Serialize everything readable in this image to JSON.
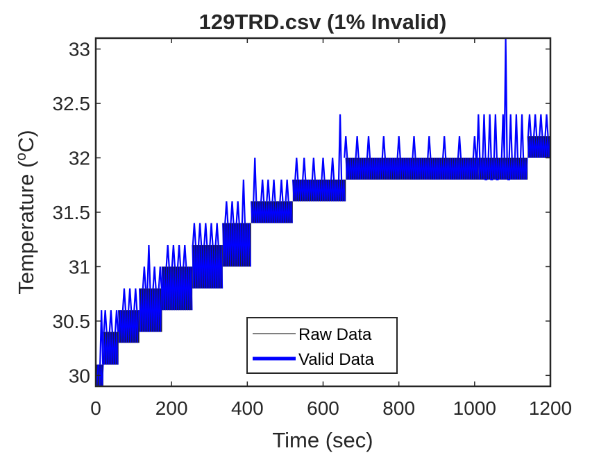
{
  "chart_data": {
    "type": "line",
    "title": "129TRD.csv (1% Invalid)",
    "xlabel": "Time (sec)",
    "ylabel": "Temperature (°C)",
    "ylabel_parts": {
      "pre": "Temperature (",
      "sup": "o",
      "post": "C)"
    },
    "xlim": [
      0,
      1200
    ],
    "ylim": [
      29.9,
      33.1
    ],
    "xticks": [
      0,
      200,
      400,
      600,
      800,
      1000,
      1200
    ],
    "xtick_labels": [
      "0",
      "200",
      "400",
      "600",
      "800",
      "1000",
      "1200"
    ],
    "yticks": [
      30,
      30.5,
      31,
      31.5,
      32,
      32.5,
      33
    ],
    "ytick_labels": [
      "30",
      "30.5",
      "31",
      "31.5",
      "32",
      "32.5",
      "33"
    ],
    "grid": false,
    "legend_position": "bottom-center",
    "series": [
      {
        "name": "Raw Data",
        "color": "#000000",
        "line_width": "thin"
      },
      {
        "name": "Valid Data",
        "color": "#0000ff",
        "line_width": "thick"
      }
    ],
    "steps": [
      {
        "x0": 0,
        "x1": 8,
        "low": 29.8,
        "high": 30.1
      },
      {
        "x0": 8,
        "x1": 20,
        "low": 29.9,
        "high": 30.1
      },
      {
        "x0": 20,
        "x1": 60,
        "low": 30.1,
        "high": 30.4
      },
      {
        "x0": 60,
        "x1": 115,
        "low": 30.3,
        "high": 30.6
      },
      {
        "x0": 115,
        "x1": 175,
        "low": 30.4,
        "high": 30.8
      },
      {
        "x0": 175,
        "x1": 255,
        "low": 30.6,
        "high": 31.0
      },
      {
        "x0": 255,
        "x1": 335,
        "low": 30.8,
        "high": 31.2
      },
      {
        "x0": 335,
        "x1": 410,
        "low": 31.0,
        "high": 31.4
      },
      {
        "x0": 410,
        "x1": 520,
        "low": 31.4,
        "high": 31.6
      },
      {
        "x0": 520,
        "x1": 660,
        "low": 31.6,
        "high": 31.8
      },
      {
        "x0": 660,
        "x1": 1010,
        "low": 31.8,
        "high": 32.0
      },
      {
        "x0": 1010,
        "x1": 1140,
        "low": 31.8,
        "high": 32.0
      },
      {
        "x0": 1140,
        "x1": 1200,
        "low": 32.0,
        "high": 32.2
      }
    ],
    "spikes": [
      {
        "x": 15,
        "y": 30.6
      },
      {
        "x": 25,
        "y": 30.6
      },
      {
        "x": 40,
        "y": 30.6
      },
      {
        "x": 55,
        "y": 30.6
      },
      {
        "x": 75,
        "y": 30.8
      },
      {
        "x": 90,
        "y": 30.8
      },
      {
        "x": 105,
        "y": 30.8
      },
      {
        "x": 128,
        "y": 31.0
      },
      {
        "x": 140,
        "y": 31.2
      },
      {
        "x": 155,
        "y": 31.0
      },
      {
        "x": 170,
        "y": 31.0
      },
      {
        "x": 190,
        "y": 31.2
      },
      {
        "x": 205,
        "y": 31.2
      },
      {
        "x": 220,
        "y": 31.2
      },
      {
        "x": 235,
        "y": 31.2
      },
      {
        "x": 260,
        "y": 31.4
      },
      {
        "x": 275,
        "y": 31.4
      },
      {
        "x": 290,
        "y": 31.4
      },
      {
        "x": 305,
        "y": 31.4
      },
      {
        "x": 320,
        "y": 31.4
      },
      {
        "x": 345,
        "y": 31.6
      },
      {
        "x": 360,
        "y": 31.6
      },
      {
        "x": 375,
        "y": 31.6
      },
      {
        "x": 390,
        "y": 31.8
      },
      {
        "x": 420,
        "y": 32.0
      },
      {
        "x": 440,
        "y": 31.8
      },
      {
        "x": 455,
        "y": 31.8
      },
      {
        "x": 470,
        "y": 31.8
      },
      {
        "x": 490,
        "y": 31.8
      },
      {
        "x": 505,
        "y": 31.8
      },
      {
        "x": 530,
        "y": 32.0
      },
      {
        "x": 550,
        "y": 32.0
      },
      {
        "x": 575,
        "y": 32.0
      },
      {
        "x": 600,
        "y": 32.0
      },
      {
        "x": 625,
        "y": 32.0
      },
      {
        "x": 645,
        "y": 32.4
      },
      {
        "x": 660,
        "y": 32.2
      },
      {
        "x": 690,
        "y": 32.2
      },
      {
        "x": 720,
        "y": 32.2
      },
      {
        "x": 760,
        "y": 32.2
      },
      {
        "x": 800,
        "y": 32.2
      },
      {
        "x": 840,
        "y": 32.2
      },
      {
        "x": 880,
        "y": 32.2
      },
      {
        "x": 920,
        "y": 32.2
      },
      {
        "x": 960,
        "y": 32.2
      },
      {
        "x": 1000,
        "y": 32.2
      },
      {
        "x": 1010,
        "y": 32.4
      },
      {
        "x": 1025,
        "y": 32.4
      },
      {
        "x": 1040,
        "y": 32.4
      },
      {
        "x": 1055,
        "y": 32.4
      },
      {
        "x": 1075,
        "y": 32.4
      },
      {
        "x": 1082,
        "y": 33.1
      },
      {
        "x": 1095,
        "y": 32.4
      },
      {
        "x": 1110,
        "y": 32.4
      },
      {
        "x": 1125,
        "y": 32.4
      },
      {
        "x": 1145,
        "y": 32.4
      },
      {
        "x": 1160,
        "y": 32.4
      },
      {
        "x": 1175,
        "y": 32.4
      },
      {
        "x": 1190,
        "y": 32.4
      }
    ],
    "dips": [
      {
        "x": 1030,
        "y": 31.8
      },
      {
        "x": 1045,
        "y": 31.8
      },
      {
        "x": 1060,
        "y": 31.8
      },
      {
        "x": 1090,
        "y": 31.8
      }
    ]
  }
}
